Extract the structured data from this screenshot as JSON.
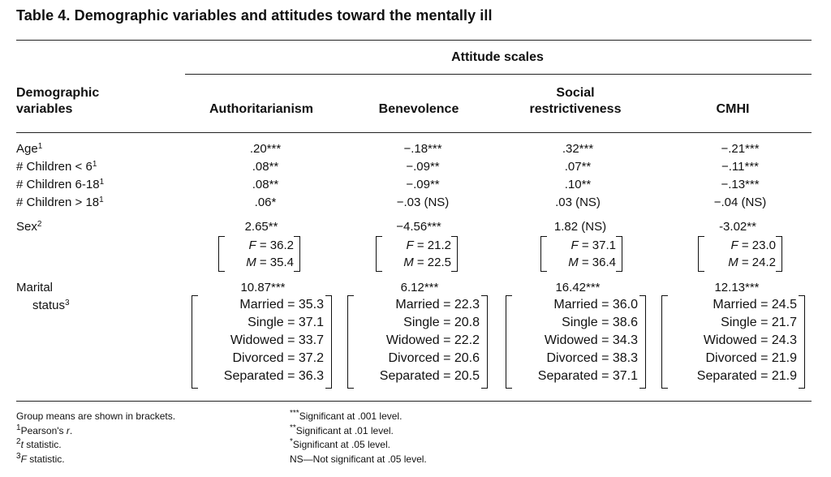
{
  "title": "Table 4. Demographic variables and attitudes toward the mentally ill",
  "header": {
    "group": "Attitude scales",
    "row_header": [
      "Demographic",
      "variables"
    ],
    "columns": [
      {
        "lines": [
          "Authoritarianism"
        ]
      },
      {
        "lines": [
          "Benevolence"
        ]
      },
      {
        "lines": [
          "Social",
          "restrictiveness"
        ]
      },
      {
        "lines": [
          "CMHI"
        ]
      }
    ]
  },
  "rows": {
    "age": {
      "label": "Age",
      "note": "1",
      "values": [
        ".20***",
        "−.18***",
        ".32***",
        "−.21***"
      ]
    },
    "children_lt6": {
      "label": "# Children < 6",
      "note": "1",
      "values": [
        ".08**",
        "−.09**",
        ".07**",
        "−.11***"
      ]
    },
    "children_6_18": {
      "label": "# Children 6-18",
      "note": "1",
      "values": [
        ".08**",
        "−.09**",
        ".10**",
        "−.13***"
      ]
    },
    "children_gt18": {
      "label": "# Children > 18",
      "note": "1",
      "values": [
        ".06*",
        "−.03 (NS)",
        ".03 (NS)",
        "−.04 (NS)"
      ]
    },
    "sex": {
      "label": "Sex",
      "note": "2",
      "values": [
        "2.65**",
        "−4.56***",
        "1.82 (NS)",
        "-3.02**"
      ],
      "means": [
        {
          "f": "36.2",
          "m": "35.4"
        },
        {
          "f": "21.2",
          "m": "22.5"
        },
        {
          "f": "37.1",
          "m": "36.4"
        },
        {
          "f": "23.0",
          "m": "24.2"
        }
      ]
    },
    "marital": {
      "label1": "Marital",
      "label2": "status",
      "note": "3",
      "values": [
        "10.87***",
        "6.12***",
        "16.42***",
        "12.13***"
      ],
      "groups": [
        "Married",
        "Single",
        "Widowed",
        "Divorced",
        "Separated"
      ],
      "means": [
        [
          "35.3",
          "37.1",
          "33.7",
          "37.2",
          "36.3"
        ],
        [
          "22.3",
          "20.8",
          "22.2",
          "20.6",
          "20.5"
        ],
        [
          "36.0",
          "38.6",
          "34.3",
          "38.3",
          "37.1"
        ],
        [
          "24.5",
          "21.7",
          "24.3",
          "21.9",
          "21.9"
        ]
      ]
    }
  },
  "labels": {
    "f": "F",
    "m": "M",
    "eq": " = "
  },
  "footnotes": {
    "left": [
      {
        "sup": "",
        "text": "Group means are shown in brackets."
      },
      {
        "sup": "1",
        "text": "Pearson's ",
        "ital": "r",
        "tail": "."
      },
      {
        "sup": "2",
        "text": "",
        "ital": "t",
        "tail": " statistic."
      },
      {
        "sup": "3",
        "text": "",
        "ital": "F",
        "tail": " statistic."
      }
    ],
    "right": [
      {
        "sup": "***",
        "text": "Significant at .001 level."
      },
      {
        "sup": "**",
        "text": "Significant at .01 level."
      },
      {
        "sup": "*",
        "text": "Significant at .05 level."
      },
      {
        "sup": "",
        "text": "NS—Not significant at .05 level."
      }
    ]
  }
}
